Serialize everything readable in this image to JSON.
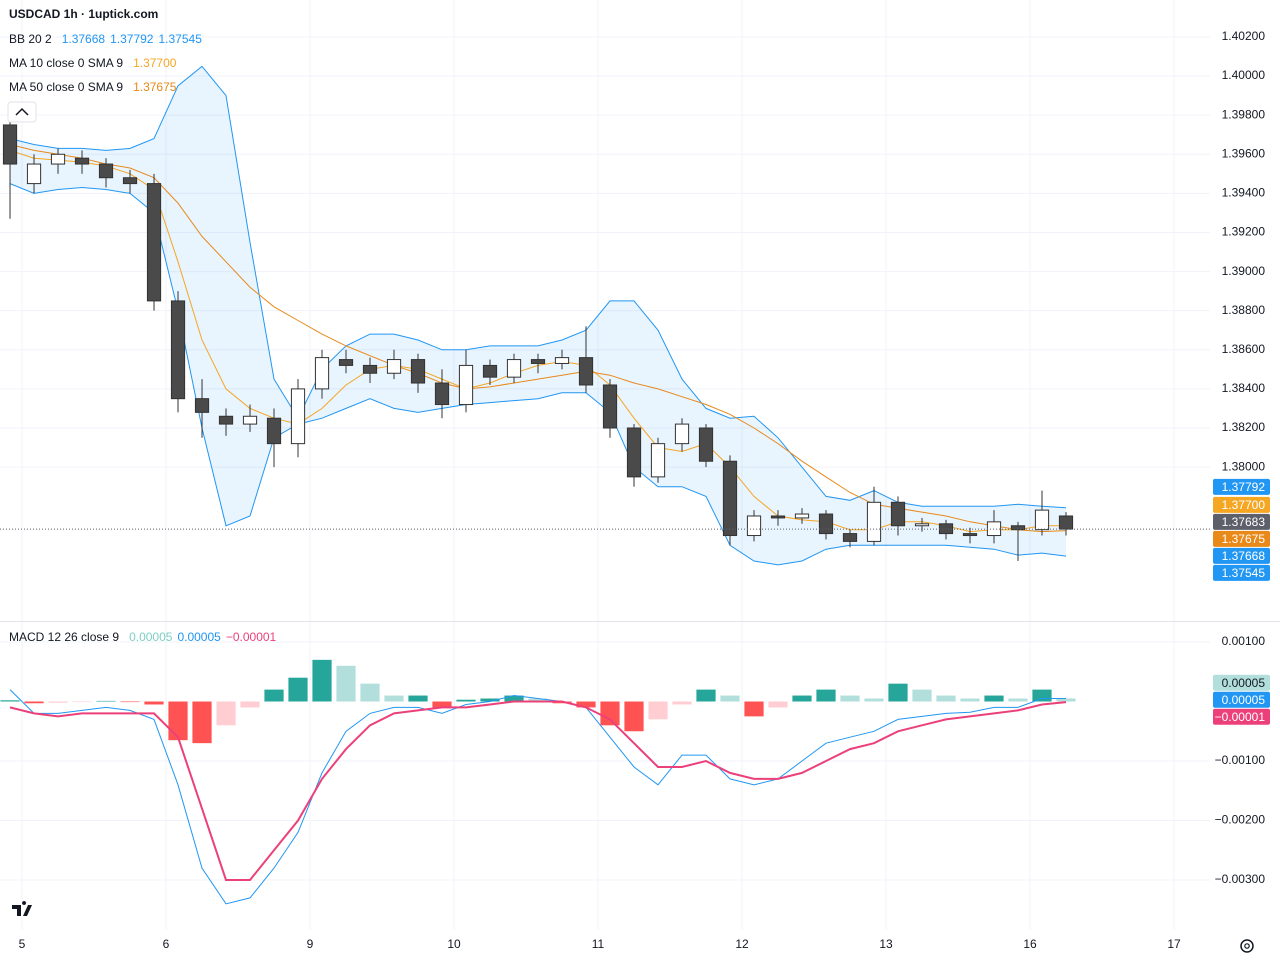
{
  "chart_data": [
    {
      "type": "candlestick",
      "title": "USDCAD 1h · 1uptick.com",
      "x": [
        -2,
        2,
        6,
        10,
        14,
        18,
        22,
        26,
        30,
        34,
        38,
        42,
        46,
        50,
        54,
        58,
        62,
        66,
        70,
        74,
        78,
        82,
        86,
        90,
        94,
        98,
        102,
        106,
        110,
        114,
        118,
        122,
        126,
        130,
        134,
        138,
        142,
        146,
        150,
        154,
        158,
        162,
        166,
        170,
        174
      ],
      "open": [
        1.3975,
        1.3945,
        1.3955,
        1.3958,
        1.3955,
        1.3948,
        1.3945,
        1.3885,
        1.3835,
        1.3826,
        1.3822,
        1.3825,
        1.3812,
        1.384,
        1.3855,
        1.3852,
        1.3848,
        1.3855,
        1.3843,
        1.3832,
        1.3852,
        1.3846,
        1.3855,
        1.3853,
        1.3856,
        1.3842,
        1.382,
        1.3795,
        1.3812,
        1.382,
        1.3803,
        1.3765,
        1.3775,
        1.3774,
        1.3776,
        1.3766,
        1.3762,
        1.3782,
        1.377,
        1.3771,
        1.3766,
        1.3765,
        1.377,
        1.3768,
        1.3775
      ],
      "high": [
        1.398,
        1.396,
        1.3963,
        1.3962,
        1.3958,
        1.3952,
        1.395,
        1.389,
        1.3845,
        1.383,
        1.3832,
        1.383,
        1.3845,
        1.386,
        1.386,
        1.3856,
        1.386,
        1.3858,
        1.385,
        1.386,
        1.3855,
        1.3858,
        1.3858,
        1.386,
        1.3872,
        1.3845,
        1.3822,
        1.3815,
        1.3825,
        1.3822,
        1.3806,
        1.3778,
        1.3778,
        1.3779,
        1.3778,
        1.3768,
        1.379,
        1.3785,
        1.3774,
        1.3773,
        1.3769,
        1.3778,
        1.3772,
        1.3788,
        1.3777
      ],
      "low": [
        1.3927,
        1.394,
        1.395,
        1.395,
        1.3943,
        1.394,
        1.388,
        1.3828,
        1.3815,
        1.3816,
        1.3818,
        1.38,
        1.3805,
        1.3835,
        1.3848,
        1.3843,
        1.3845,
        1.3838,
        1.3825,
        1.3828,
        1.3842,
        1.3843,
        1.3848,
        1.385,
        1.3838,
        1.3815,
        1.379,
        1.3792,
        1.3808,
        1.38,
        1.376,
        1.3762,
        1.377,
        1.3771,
        1.3763,
        1.3759,
        1.376,
        1.3765,
        1.3767,
        1.3763,
        1.3761,
        1.3761,
        1.3752,
        1.3765,
        1.3765
      ],
      "close": [
        1.3955,
        1.3955,
        1.396,
        1.3955,
        1.3948,
        1.3945,
        1.3885,
        1.3835,
        1.3828,
        1.3822,
        1.3826,
        1.3812,
        1.384,
        1.3856,
        1.3852,
        1.3848,
        1.3855,
        1.3843,
        1.3832,
        1.3852,
        1.3846,
        1.3855,
        1.3853,
        1.3856,
        1.3842,
        1.382,
        1.3795,
        1.3812,
        1.3822,
        1.3803,
        1.3765,
        1.3775,
        1.3774,
        1.3776,
        1.3766,
        1.3762,
        1.3782,
        1.377,
        1.3771,
        1.3766,
        1.3765,
        1.3772,
        1.3768,
        1.3778,
        1.37683
      ],
      "up_color": "#ffffff",
      "down_color": "#4a4a4a",
      "wick_color": "#333333",
      "bands": {
        "name": "BB 20 2",
        "color": "#2196f3",
        "fill": "#2196f3",
        "readouts": [
          1.37668,
          1.37792,
          1.37545
        ],
        "upper": [
          1.3968,
          1.3965,
          1.3963,
          1.3963,
          1.3962,
          1.3963,
          1.3968,
          1.3995,
          1.4005,
          1.399,
          1.3915,
          1.3845,
          1.3825,
          1.385,
          1.3862,
          1.3868,
          1.3868,
          1.3865,
          1.386,
          1.386,
          1.3862,
          1.3862,
          1.3862,
          1.3865,
          1.387,
          1.3885,
          1.3885,
          1.387,
          1.3845,
          1.383,
          1.3825,
          1.3826,
          1.3815,
          1.38,
          1.3785,
          1.3783,
          1.3788,
          1.3782,
          1.378,
          1.378,
          1.378,
          1.378,
          1.3781,
          1.378,
          1.37792
        ],
        "lower": [
          1.3945,
          1.394,
          1.3942,
          1.3943,
          1.3942,
          1.394,
          1.393,
          1.388,
          1.382,
          1.377,
          1.3775,
          1.3815,
          1.3822,
          1.3825,
          1.383,
          1.3835,
          1.383,
          1.3828,
          1.383,
          1.3832,
          1.3833,
          1.3834,
          1.3835,
          1.3838,
          1.3838,
          1.3828,
          1.38,
          1.379,
          1.379,
          1.3785,
          1.376,
          1.3752,
          1.375,
          1.3752,
          1.3758,
          1.376,
          1.376,
          1.376,
          1.376,
          1.376,
          1.3759,
          1.3758,
          1.3755,
          1.3756,
          1.37545
        ]
      },
      "series": [
        {
          "name": "MA 10 close 0 SMA 9",
          "color": "#f5a623",
          "readout": {
            "value": 1.377,
            "label": "1.37700"
          },
          "values": [
            1.3962,
            1.3958,
            1.3957,
            1.3956,
            1.3954,
            1.395,
            1.3942,
            1.3905,
            1.3865,
            1.384,
            1.383,
            1.3825,
            1.3822,
            1.383,
            1.3842,
            1.385,
            1.3852,
            1.385,
            1.3845,
            1.384,
            1.3843,
            1.3848,
            1.3852,
            1.3854,
            1.3852,
            1.3842,
            1.3825,
            1.381,
            1.3808,
            1.3812,
            1.38,
            1.3785,
            1.3775,
            1.3773,
            1.3772,
            1.3768,
            1.3768,
            1.3772,
            1.3772,
            1.377,
            1.3767,
            1.3768,
            1.3768,
            1.377,
            1.377
          ]
        },
        {
          "name": "MA 50 close 0 SMA 9",
          "color": "#e8891a",
          "readout": 1.37675,
          "values": [
            1.3965,
            1.3962,
            1.396,
            1.3958,
            1.3955,
            1.3953,
            1.3948,
            1.3935,
            1.3918,
            1.3905,
            1.3892,
            1.3882,
            1.3875,
            1.3868,
            1.3862,
            1.3857,
            1.3852,
            1.3848,
            1.3843,
            1.384,
            1.3841,
            1.3843,
            1.3845,
            1.3847,
            1.3849,
            1.3847,
            1.3843,
            1.384,
            1.3836,
            1.3832,
            1.3827,
            1.382,
            1.3812,
            1.3803,
            1.3795,
            1.3787,
            1.3781,
            1.3779,
            1.3777,
            1.3775,
            1.3772,
            1.377,
            1.3768,
            1.3767,
            1.37675
          ]
        }
      ],
      "price_labels": [
        {
          "value": 1.37792,
          "color": "#2196f3"
        },
        {
          "value": 1.377,
          "label": "1.37700",
          "color": "#f5a623"
        },
        {
          "value": 1.37683,
          "color": "#5d606b",
          "dotted": true
        },
        {
          "value": 1.37675,
          "color": "#e8891a"
        },
        {
          "value": 1.37668,
          "color": "#2196f3"
        },
        {
          "value": 1.37545,
          "color": "#2196f3"
        }
      ],
      "xlim": [
        -3.67,
        198
      ],
      "xticks": [
        {
          "value": 0,
          "label": "5"
        },
        {
          "value": 24,
          "label": "6"
        },
        {
          "value": 48,
          "label": "9"
        },
        {
          "value": 72,
          "label": "10"
        },
        {
          "value": 96,
          "label": "11"
        },
        {
          "value": 120,
          "label": "12"
        },
        {
          "value": 144,
          "label": "13"
        },
        {
          "value": 168,
          "label": "16"
        },
        {
          "value": 192,
          "label": "17"
        }
      ],
      "ylim": [
        1.37218,
        1.40389
      ],
      "yticks": [
        {
          "value": 1.402,
          "label": "1.40200"
        },
        {
          "value": 1.4,
          "label": "1.40000"
        },
        {
          "value": 1.398,
          "label": "1.39800"
        },
        {
          "value": 1.396,
          "label": "1.39600"
        },
        {
          "value": 1.394,
          "label": "1.39400"
        },
        {
          "value": 1.392,
          "label": "1.39200"
        },
        {
          "value": 1.39,
          "label": "1.39000"
        },
        {
          "value": 1.388,
          "label": "1.38800"
        },
        {
          "value": 1.386,
          "label": "1.38600"
        },
        {
          "value": 1.384,
          "label": "1.38400"
        },
        {
          "value": 1.382,
          "label": "1.38200"
        },
        {
          "value": 1.38,
          "label": "1.38000"
        }
      ],
      "grid": true
    },
    {
      "type": "macd",
      "name": "MACD 12 26 close 9",
      "readouts": [
        {
          "value": 5e-05,
          "color": "#7fcfc4"
        },
        {
          "value": 5e-05,
          "color": "#2196f3"
        },
        {
          "value": -1e-05,
          "label": "−0.00001",
          "color": "#ec407a"
        }
      ],
      "histogram": {
        "colors": {
          "pos_rising": "#26a69a",
          "pos_falling": "#b2dfdb",
          "neg_falling": "#ff5252",
          "neg_rising": "#ffcdd2"
        },
        "values": [
          2e-05,
          -3e-05,
          -2e-05,
          -1e-05,
          1e-05,
          -1e-05,
          -5e-05,
          -0.00065,
          -0.0007,
          -0.0004,
          -0.0001,
          0.0002,
          0.0004,
          0.0007,
          0.0006,
          0.0003,
          0.0001,
          0.0001,
          -0.0001,
          3e-05,
          5e-05,
          0.0001,
          5e-05,
          -3e-05,
          -0.0001,
          -0.0004,
          -0.0005,
          -0.0003,
          -5e-05,
          0.0002,
          0.0001,
          -0.00025,
          -0.0001,
          0.0001,
          0.0002,
          0.0001,
          5e-05,
          0.0003,
          0.0002,
          0.0001,
          5e-05,
          0.0001,
          5e-05,
          0.0002,
          5e-05
        ]
      },
      "series": [
        {
          "color": "#2196f3",
          "values": [
            0.0002,
            -0.0002,
            -0.0002,
            -0.00015,
            -0.0001,
            -0.00015,
            -0.0003,
            -0.0014,
            -0.0028,
            -0.0034,
            -0.0033,
            -0.0028,
            -0.0022,
            -0.0012,
            -0.0005,
            -0.0002,
            -0.0001,
            -0.0001,
            -0.0002,
            -5e-05,
            0,
            0.0001,
            5e-05,
            0,
            -0.0001,
            -0.0006,
            -0.0011,
            -0.0014,
            -0.0009,
            -0.0009,
            -0.0013,
            -0.0014,
            -0.0013,
            -0.001,
            -0.0007,
            -0.0006,
            -0.0005,
            -0.0003,
            -0.00025,
            -0.0002,
            -0.00018,
            -0.0001,
            -0.0001,
            5e-05,
            5e-05
          ]
        },
        {
          "color": "#ec407a",
          "values": [
            -0.0001,
            -0.0002,
            -0.00025,
            -0.0002,
            -0.0002,
            -0.0002,
            -0.0002,
            -0.0006,
            -0.0018,
            -0.003,
            -0.003,
            -0.0025,
            -0.002,
            -0.0013,
            -0.0008,
            -0.0004,
            -0.0002,
            -0.00015,
            -0.0001,
            -0.0001,
            -5e-05,
            0,
            0,
            0,
            -0.0001,
            -0.0003,
            -0.0007,
            -0.0011,
            -0.0011,
            -0.001,
            -0.0012,
            -0.0013,
            -0.0013,
            -0.0012,
            -0.001,
            -0.0008,
            -0.0007,
            -0.0005,
            -0.0004,
            -0.0003,
            -0.00025,
            -0.0002,
            -0.00015,
            -5e-05,
            -1e-05
          ]
        }
      ],
      "price_labels": [
        {
          "value": 5e-05,
          "color": "#b2dfdb",
          "text_color": "#131722"
        },
        {
          "value": 5e-05,
          "color": "#2196f3"
        },
        {
          "value": -1e-05,
          "label": "−0.00001",
          "color": "#ec407a"
        }
      ],
      "ylim": [
        -0.00384,
        0.001336
      ],
      "yticks": [
        {
          "value": 0.001,
          "label": "0.00100"
        },
        {
          "value": -0.001,
          "label": "−0.00100"
        },
        {
          "value": -0.002,
          "label": "−0.00200"
        },
        {
          "value": -0.003,
          "label": "−0.00300"
        }
      ],
      "grid": true
    }
  ]
}
